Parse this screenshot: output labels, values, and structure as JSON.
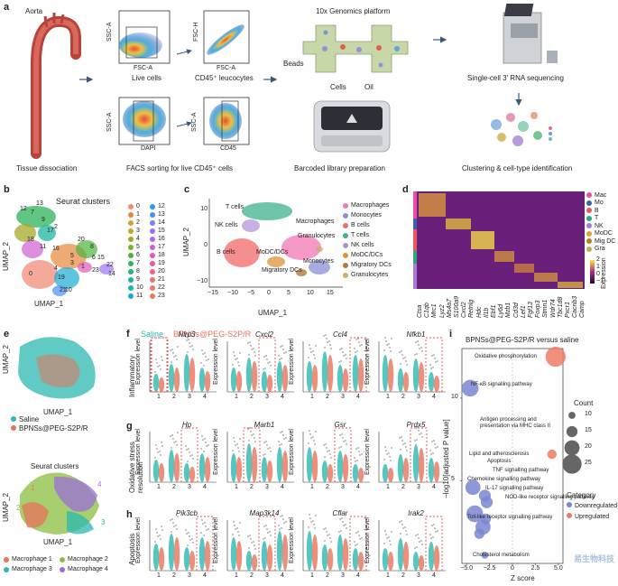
{
  "panel_a": {
    "label": "a",
    "aorta": "Aorta",
    "tissue": "Tissue dissociation",
    "ssc_a": "SSC-A",
    "fsc_a": "FSC-A",
    "fsc_h": "FSC-H",
    "dapi": "DAPI",
    "cd45": "CD45",
    "live_cells": "Live cells",
    "cd45_leuco": "CD45⁺ leucocytes",
    "facs": "FACS sorting for live CD45⁺ cells",
    "platform": "10x Genomics platform",
    "beads": "Beads",
    "cells": "Cells",
    "oil": "Oil",
    "barcoded": "Barcoded library preparation",
    "sequencing": "Single-cell 3′ RNA sequencing",
    "clustering": "Clustering & cell-type identification"
  },
  "panel_b": {
    "label": "b",
    "title": "Seurat clusters",
    "ylabel": "UMAP_2",
    "xlabel": "UMAP_1",
    "clusters": [
      {
        "id": "0",
        "color": "#f28c78"
      },
      {
        "id": "1",
        "color": "#e8883a"
      },
      {
        "id": "2",
        "color": "#d9a02a"
      },
      {
        "id": "3",
        "color": "#c9a32d"
      },
      {
        "id": "4",
        "color": "#a6a82a"
      },
      {
        "id": "5",
        "color": "#7fae2a"
      },
      {
        "id": "6",
        "color": "#4db33d"
      },
      {
        "id": "7",
        "color": "#2eb35a"
      },
      {
        "id": "8",
        "color": "#22b57f"
      },
      {
        "id": "9",
        "color": "#1db59f"
      },
      {
        "id": "10",
        "color": "#1ab3bd"
      },
      {
        "id": "11",
        "color": "#1ba9d6"
      },
      {
        "id": "12",
        "color": "#2a9de8"
      },
      {
        "id": "13",
        "color": "#4a8ef2"
      },
      {
        "id": "14",
        "color": "#7b7ff5"
      },
      {
        "id": "15",
        "color": "#9c73f0"
      },
      {
        "id": "16",
        "color": "#b867e3"
      },
      {
        "id": "17",
        "color": "#cf5ed0"
      },
      {
        "id": "18",
        "color": "#e058b8"
      },
      {
        "id": "19",
        "color": "#ea5a9c"
      },
      {
        "id": "20",
        "color": "#f0648a"
      },
      {
        "id": "21",
        "color": "#f06f78"
      },
      {
        "id": "22",
        "color": "#ef7766"
      },
      {
        "id": "23",
        "color": "#e97a58"
      }
    ],
    "map_labels": [
      "12",
      "13",
      "7",
      "9",
      "17",
      "2",
      "18",
      "20",
      "8",
      "6",
      "5",
      "11",
      "16",
      "3",
      "4",
      "0",
      "19",
      "22",
      "14",
      "1",
      "21",
      "10",
      "23",
      "15"
    ]
  },
  "panel_c": {
    "label": "c",
    "ylabel": "UMAP_2",
    "xlabel": "UMAP_1",
    "xticks": [
      "−15",
      "−10",
      "−5",
      "0",
      "5",
      "10",
      "15"
    ],
    "yticks": [
      "10",
      "0",
      "−10"
    ],
    "map_labels": [
      "T cells",
      "NK cells",
      "B cells",
      "Macrophages",
      "Granulocytes",
      "MoDC/DCs",
      "Monocytes",
      "Migratory DCs"
    ],
    "legend": [
      {
        "name": "Macrophages",
        "color": "#f277b6"
      },
      {
        "name": "Monocytes",
        "color": "#8a8fd6"
      },
      {
        "name": "B cells",
        "color": "#f26a6a"
      },
      {
        "name": "T cells",
        "color": "#3fb28f"
      },
      {
        "name": "NK cells",
        "color": "#b08fd9"
      },
      {
        "name": "MoDC/DCs",
        "color": "#e0923a"
      },
      {
        "name": "Migratory DCs",
        "color": "#b07a3a"
      },
      {
        "name": "Granulocytes",
        "color": "#c7b06a"
      }
    ]
  },
  "panel_d": {
    "label": "d",
    "genes": [
      "Ctsa",
      "C1qb",
      "Mrc1",
      "Lyz2",
      "Ms4a7",
      "S100a9",
      "Cxcl2",
      "Retnlg",
      "Hdc",
      "Il1b",
      "Ebf1",
      "Ly6d",
      "Mzb1",
      "Cd3d",
      "Lef1",
      "Fgf13",
      "Foxp3",
      "Stmn1",
      "Wdr74",
      "Tbc1d8",
      "Pxcr1",
      "Cacnb3",
      "Camp"
    ],
    "legend": [
      {
        "name": "Mac",
        "color": "#e84fa5"
      },
      {
        "name": "Mo",
        "color": "#3f5fb0"
      },
      {
        "name": "B",
        "color": "#e85a5a"
      },
      {
        "name": "T",
        "color": "#2fa585"
      },
      {
        "name": "NK",
        "color": "#a47cd6"
      },
      {
        "name": "MoDC",
        "color": "#e0a040"
      },
      {
        "name": "Mig DC",
        "color": "#b0802a"
      },
      {
        "name": "Gra",
        "color": "#c0b050"
      }
    ],
    "scale_label": "Expression",
    "scale_ticks": [
      "2",
      "1",
      "0",
      "−1"
    ]
  },
  "panel_e": {
    "label": "e",
    "ylabel": "UMAP_2",
    "xlabel": "UMAP_1",
    "saline": "Saline",
    "bpns": "BPNSs@PEG-S2P/R",
    "seurat_title": "Seurat clusters",
    "legend": [
      {
        "name": "Macrophage 1",
        "color": "#e8735a"
      },
      {
        "name": "Macrophage 2",
        "color": "#8bbf3f"
      },
      {
        "name": "Macrophage 3",
        "color": "#2cb8b0"
      },
      {
        "name": "Macrophage 4",
        "color": "#9b6fd6"
      }
    ],
    "map_labels": [
      "1",
      "2",
      "3",
      "4"
    ]
  },
  "panel_f": {
    "label": "f",
    "legend_saline": "Saline",
    "legend_bpns": "BPNSs@PEG-S2P/R",
    "row_title": "Inflammatory",
    "ylabel": "Expression level",
    "genes": [
      "Nlrp3",
      "Cxcl2",
      "Ccl4",
      "Nfkb1"
    ]
  },
  "panel_g": {
    "label": "g",
    "row_title": "Oxidative stress resolution",
    "ylabel": "Expression level",
    "genes": [
      "Hp",
      "Marb1",
      "Gsr",
      "Prdx5"
    ]
  },
  "panel_h": {
    "label": "h",
    "row_title": "Apoptosis",
    "ylabel": "Expression level",
    "genes": [
      "Pik3cb",
      "Map3k14",
      "Cflar",
      "Irak2"
    ]
  },
  "violin_xticks": [
    "1",
    "2",
    "3",
    "4"
  ],
  "panel_i": {
    "label": "i",
    "title": "BPNSs@PEG-S2P/R versus saline",
    "ylabel": "−log10[adjusted P value]",
    "xlabel": "Z score",
    "xticks": [
      "−5.0",
      "−2.5",
      "0",
      "2.5",
      "5.0"
    ],
    "yticks": [
      "10",
      "5"
    ],
    "count_title": "Count",
    "count_levels": [
      "10",
      "15",
      "20",
      "25"
    ],
    "category_title": "Category",
    "category_down": "Downregulated",
    "category_up": "Upregulated",
    "down_color": "#7a86d0",
    "up_color": "#ee7a66",
    "watermark": "易生物科技"
  },
  "chart_data": {
    "type": "scatter",
    "title": "BPNSs@PEG-S2P/R versus saline",
    "xlabel": "Z score",
    "ylabel": "−log10[adjusted P value]",
    "xlim": [
      -5.5,
      5.5
    ],
    "ylim": [
      0,
      13
    ],
    "series": [
      {
        "name": "Downregulated",
        "points": [
          {
            "label": "NF-κB signalling pathway",
            "x": -4.6,
            "y": 10.6,
            "count": 22
          },
          {
            "label": "Lipid and atherosclerosis",
            "x": -4.3,
            "y": 4.6,
            "count": 20
          },
          {
            "label": "Apoptosis",
            "x": -3.0,
            "y": 4.1,
            "count": 16
          },
          {
            "label": "TNF signalling pathway",
            "x": -2.8,
            "y": 3.7,
            "count": 16
          },
          {
            "label": "Chemokine signalling pathway",
            "x": -4.1,
            "y": 3.0,
            "count": 22
          },
          {
            "label": "IL-17 signalling pathway",
            "x": -2.9,
            "y": 2.7,
            "count": 14
          },
          {
            "label": "NOD-like receptor signalling pathway",
            "x": -3.2,
            "y": 2.2,
            "count": 20
          },
          {
            "label": "Toll-like receptor signalling pathway",
            "x": -3.6,
            "y": 1.8,
            "count": 14
          },
          {
            "label": "Cholesterol metabolism",
            "x": -3.0,
            "y": 0.5,
            "count": 10
          }
        ]
      },
      {
        "name": "Upregulated",
        "points": [
          {
            "label": "Oxidative phosphorylation",
            "x": 4.7,
            "y": 12.5,
            "count": 26
          },
          {
            "label": "Antigen processing and presentation via MHC class II",
            "x": 4.3,
            "y": 6.6,
            "count": 13
          }
        ]
      }
    ]
  }
}
